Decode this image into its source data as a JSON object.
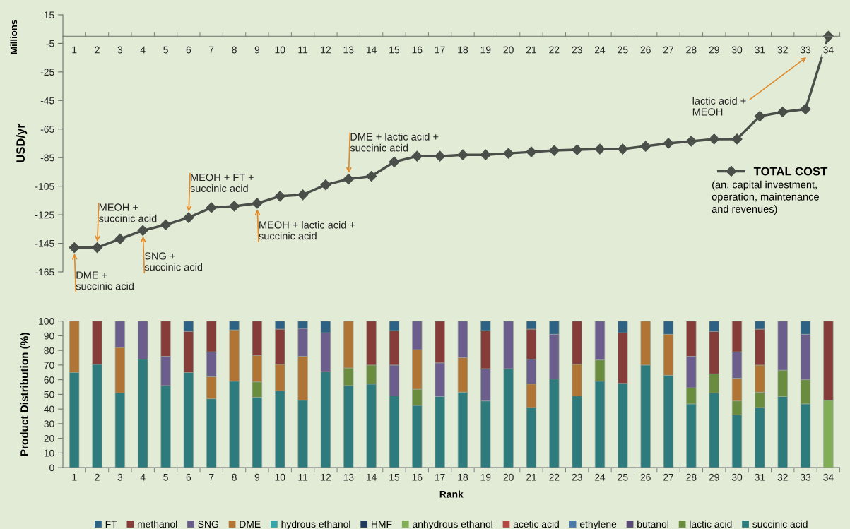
{
  "chart_data": [
    {
      "type": "line",
      "categories": [
        "1",
        "2",
        "3",
        "4",
        "5",
        "6",
        "7",
        "8",
        "9",
        "10",
        "11",
        "12",
        "13",
        "14",
        "15",
        "16",
        "17",
        "18",
        "19",
        "20",
        "21",
        "22",
        "23",
        "24",
        "25",
        "26",
        "27",
        "28",
        "29",
        "30",
        "31",
        "32",
        "33",
        "34"
      ],
      "series": [
        {
          "name": "TOTAL COST",
          "color": "#4a4f4a",
          "values": [
            -148,
            -148,
            -142,
            -136,
            -132,
            -127,
            -120,
            -119,
            -117,
            -112,
            -111,
            -104,
            -100,
            -98,
            -88,
            -84,
            -84,
            -83,
            -83,
            -82,
            -81,
            -80,
            -79.5,
            -79,
            -79,
            -77,
            -75,
            -73.5,
            -72,
            -72,
            -56,
            -53,
            -51,
            0
          ]
        }
      ],
      "marker": "diamond",
      "line_style": "solid",
      "grid": false,
      "legend": "right",
      "ylim": [
        -165,
        15
      ],
      "yticks": [
        15,
        -5,
        -25,
        -45,
        -65,
        -85,
        -105,
        -125,
        -145,
        -165
      ],
      "ylabel": "USD/yr",
      "annotations": [
        "Millions",
        "(an. capital investment,\noperation, maintenance\nand revenues)",
        "lactic acid +\nMEOH",
        {
          "text": "DME +\nsuccinic acid",
          "x": "1",
          "y": -148
        },
        {
          "text": "MEOH +\nsuccinic acid",
          "x": "2",
          "y": -148
        },
        {
          "text": "SNG +\nsuccinic acid",
          "x": "4",
          "y": -136
        },
        {
          "text": "MEOH + FT +\nsuccinic acid",
          "x": "6",
          "y": -127
        },
        {
          "text": "MEOH + lactic acid +\nsuccinic acid",
          "x": "9",
          "y": -117
        },
        {
          "text": "DME + lactic acid +\nsuccinic acid",
          "x": "13",
          "y": -100
        }
      ]
    },
    {
      "type": "bar",
      "stacked": true,
      "categories": [
        "1",
        "2",
        "3",
        "4",
        "5",
        "6",
        "7",
        "8",
        "9",
        "10",
        "11",
        "12",
        "13",
        "14",
        "15",
        "16",
        "17",
        "18",
        "19",
        "20",
        "21",
        "22",
        "23",
        "24",
        "25",
        "26",
        "27",
        "28",
        "29",
        "30",
        "31",
        "32",
        "33",
        "34"
      ],
      "series": [
        {
          "name": "succinic acid",
          "color": "#2e7b7e",
          "values": [
            65,
            70.5,
            51,
            74,
            56,
            65,
            47,
            59,
            48,
            52.5,
            46,
            65.5,
            56,
            57,
            49,
            42.5,
            48.5,
            51.5,
            45.5,
            67.5,
            41,
            60.5,
            49,
            59,
            57.5,
            70,
            63,
            43.5,
            51,
            36,
            41,
            48.5,
            43.5,
            0
          ]
        },
        {
          "name": "lactic acid",
          "color": "#6a8c3e",
          "values": [
            0,
            0,
            0,
            0,
            0,
            0,
            0,
            0,
            10.5,
            0,
            0,
            0,
            12,
            13,
            0,
            11,
            0,
            0,
            0,
            0,
            0,
            0,
            0,
            14.5,
            0,
            0,
            0,
            11,
            13,
            9.5,
            10.5,
            18,
            16.5,
            0
          ]
        },
        {
          "name": "butanol",
          "color": "#5a4a78",
          "values": [
            0,
            0,
            0,
            0,
            0,
            0,
            0,
            0,
            0,
            0,
            0,
            0,
            0,
            0,
            0,
            0,
            0,
            0,
            0,
            0,
            0,
            0,
            0,
            0,
            0,
            0,
            0,
            0,
            0,
            0,
            0,
            0,
            0,
            0
          ]
        },
        {
          "name": "ethylene",
          "color": "#4a7aa8",
          "values": [
            0,
            0,
            0,
            0,
            0,
            0,
            0,
            0,
            0,
            0,
            0,
            0,
            0,
            0,
            0,
            0,
            0,
            0,
            0,
            0,
            0,
            0,
            0,
            0,
            0,
            0,
            0,
            0,
            0,
            0,
            0,
            0,
            0,
            0
          ]
        },
        {
          "name": "acetic acid",
          "color": "#b04a45",
          "values": [
            0,
            0,
            0,
            0,
            0,
            0,
            0,
            0,
            0,
            0,
            0,
            0,
            0,
            0,
            0,
            0,
            0,
            0,
            0,
            0,
            0,
            0,
            0,
            0,
            0,
            0,
            0,
            0,
            0,
            0,
            0,
            0,
            0,
            0
          ]
        },
        {
          "name": "anhydrous ethanol",
          "color": "#80ad55",
          "values": [
            0,
            0,
            0,
            0,
            0,
            0,
            0,
            0,
            0,
            0,
            0,
            0,
            0,
            0,
            0,
            0,
            0,
            0,
            0,
            0,
            0,
            0,
            0,
            0,
            0,
            0,
            0,
            0,
            0,
            0,
            0,
            0,
            0,
            46
          ]
        },
        {
          "name": "HMF",
          "color": "#1f3a5a",
          "values": [
            0,
            0,
            0,
            0,
            0,
            0,
            0,
            0,
            0,
            0,
            0,
            0,
            0,
            0,
            0,
            0,
            0,
            0,
            0,
            0,
            0,
            0,
            0,
            0,
            0,
            0,
            0,
            0,
            0,
            0,
            0,
            0,
            0,
            0
          ]
        },
        {
          "name": "hydrous ethanol",
          "color": "#3aa3a8",
          "values": [
            0,
            0,
            0,
            0,
            0,
            0,
            0,
            0,
            0,
            0,
            0,
            0,
            0,
            0,
            0,
            0,
            0,
            0,
            0,
            0,
            0,
            0,
            0,
            0,
            0,
            0,
            0,
            0,
            0,
            0,
            0,
            0,
            0,
            0
          ]
        },
        {
          "name": "DME",
          "color": "#b07434",
          "values": [
            35,
            0,
            31,
            0,
            0,
            0,
            15,
            35,
            18,
            18,
            30,
            0,
            32,
            0,
            0,
            27,
            0,
            23.5,
            0,
            0,
            16,
            0,
            21.5,
            0,
            0,
            30,
            28,
            0,
            0,
            15.5,
            18.5,
            0,
            0,
            0
          ]
        },
        {
          "name": "SNG",
          "color": "#6b5e8c",
          "values": [
            0,
            0,
            18,
            26,
            20,
            0,
            17,
            0,
            0,
            0,
            19,
            26.5,
            0,
            0,
            21,
            19.5,
            23,
            25,
            22,
            32.5,
            17,
            30.5,
            0,
            26.5,
            0,
            0,
            0,
            21.5,
            0,
            18,
            0,
            33.5,
            31,
            0
          ]
        },
        {
          "name": "methanol",
          "color": "#863c38",
          "values": [
            0,
            29.5,
            0,
            0,
            24,
            28,
            21,
            0,
            23.5,
            24,
            0,
            0,
            0,
            30,
            23.5,
            0,
            28.5,
            0,
            26,
            0,
            20.5,
            0,
            29.5,
            0,
            34.5,
            0,
            0,
            24,
            29,
            21,
            24.5,
            0,
            0,
            54
          ]
        },
        {
          "name": "FT",
          "color": "#2e6285",
          "values": [
            0,
            0,
            0,
            0,
            0,
            7,
            0,
            6,
            0,
            5.5,
            5,
            8,
            0,
            0,
            6.5,
            0,
            0,
            0,
            6.5,
            0,
            5.5,
            9,
            0,
            0,
            8,
            0,
            9,
            0,
            7,
            0,
            5.5,
            0,
            9,
            0
          ]
        }
      ],
      "grid": false,
      "legend": "bottom",
      "ylim": [
        0,
        100
      ],
      "yticks": [
        0,
        10,
        20,
        30,
        40,
        50,
        60,
        70,
        80,
        90,
        100
      ],
      "xlabel": "Rank",
      "ylabel": "Product Distribution (%)"
    }
  ]
}
